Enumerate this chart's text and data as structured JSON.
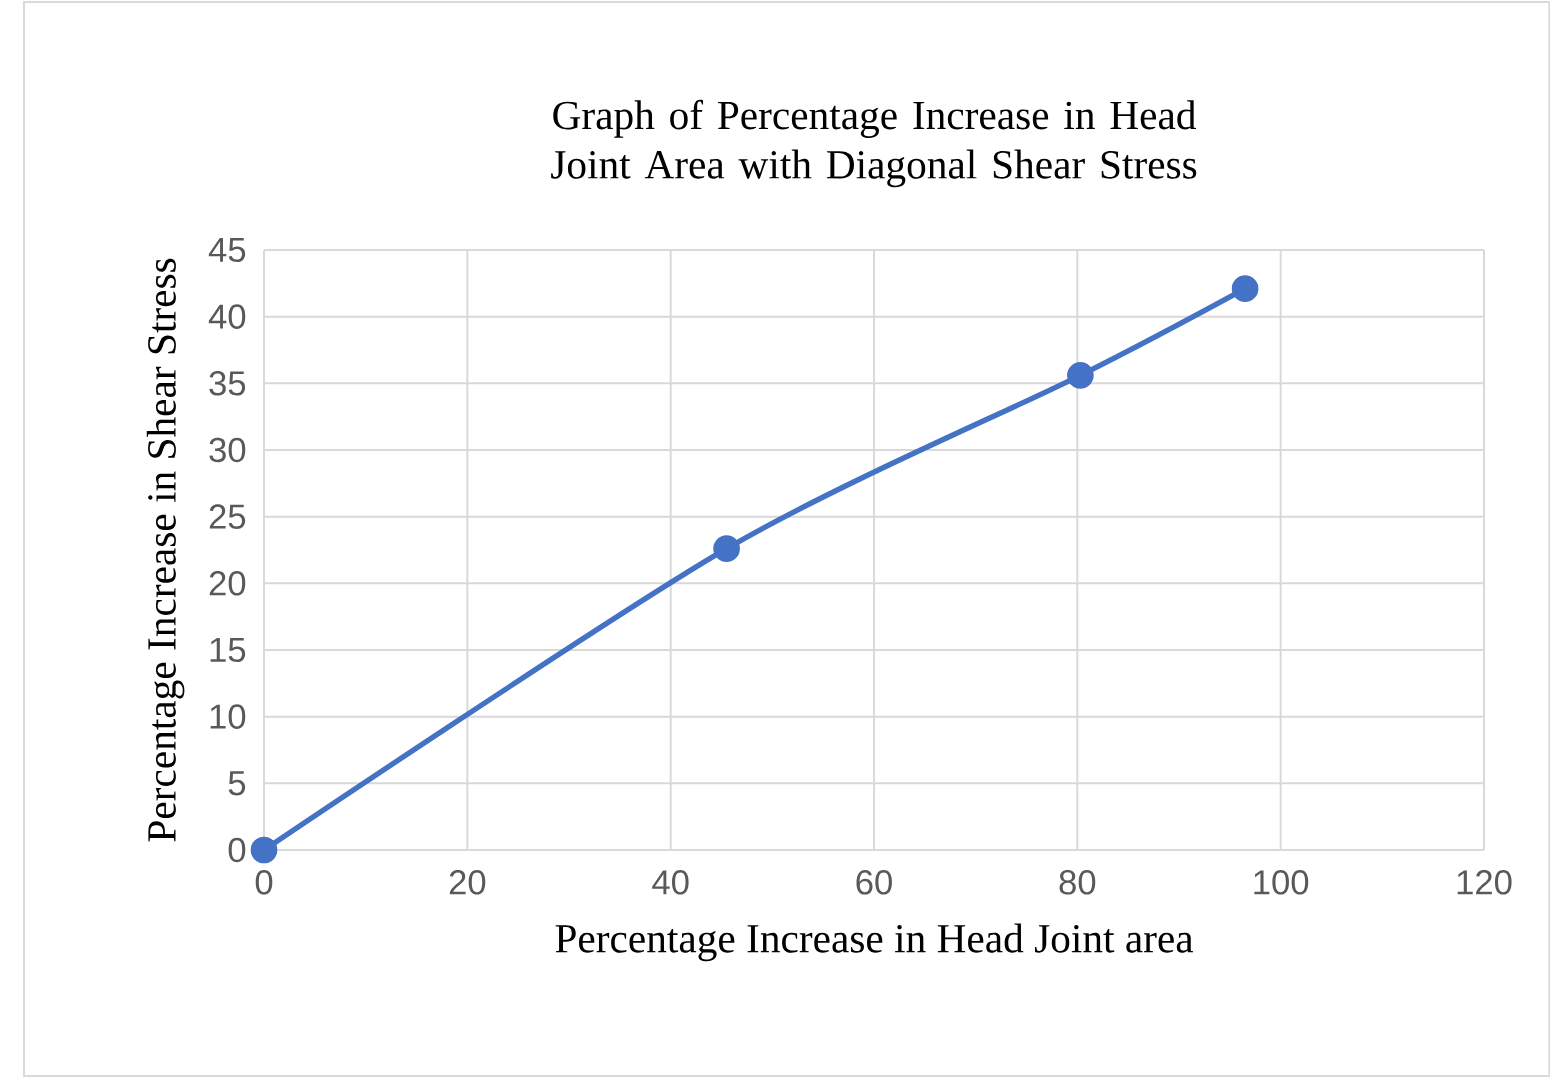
{
  "chart_data": {
    "type": "line",
    "title": "Graph of Percentage Increase in Head Joint Area with Diagonal Shear Stress",
    "xlabel": "Percentage Increase in Head Joint area",
    "ylabel": "Percentage Increase in Shear Stress",
    "x": [
      0,
      45.5,
      80.3,
      96.5
    ],
    "series": [
      {
        "color": "#4472c4",
        "values": [
          0,
          22.6,
          35.6,
          42.1
        ]
      }
    ],
    "xlim": [
      0,
      120
    ],
    "xticks": [
      0,
      20,
      40,
      60,
      80,
      100,
      120
    ],
    "ylim": [
      0,
      45
    ],
    "yticks": [
      0,
      5,
      10,
      15,
      20,
      25,
      30,
      35,
      40,
      45
    ],
    "grid": true,
    "marker": "circle",
    "line_style": "solid"
  }
}
